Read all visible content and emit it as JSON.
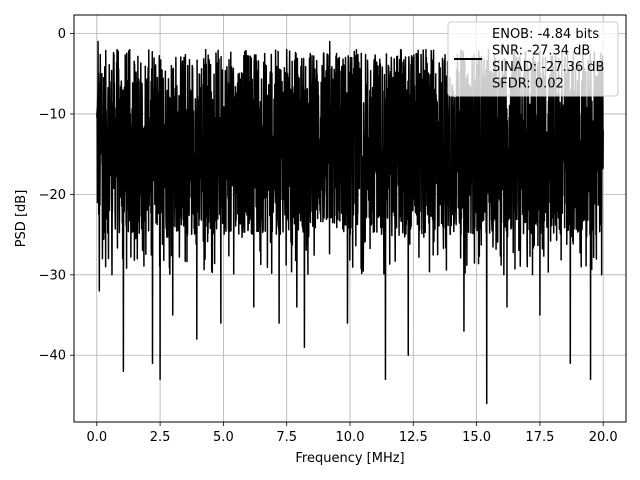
{
  "chart_data": {
    "type": "line",
    "title": "",
    "xlabel": "Frequency [MHz]",
    "ylabel": "PSD [dB]",
    "xlim": [
      -0.9,
      20.9
    ],
    "ylim": [
      -48.3,
      2.3
    ],
    "x_ticks": [
      0.0,
      2.5,
      5.0,
      7.5,
      10.0,
      12.5,
      15.0,
      17.5,
      20.0
    ],
    "x_tick_labels": [
      "0.0",
      "2.5",
      "5.0",
      "7.5",
      "10.0",
      "12.5",
      "15.0",
      "17.5",
      "20.0"
    ],
    "y_ticks": [
      0,
      -10,
      -20,
      -30,
      -40
    ],
    "y_tick_labels": [
      "0",
      "−10",
      "−20",
      "−30",
      "−40"
    ],
    "grid": true,
    "legend_position": "top-right",
    "legend_lines": [
      "ENOB: -4.84 bits",
      "SNR: -27.34 dB",
      "SINAD: -27.36 dB",
      "SFDR: 0.02"
    ],
    "series": [
      {
        "color": "#000000",
        "x_start": 0.0,
        "x_end": 20.0,
        "dense_band": [
          -25,
          -2
        ],
        "x": [
          0.05,
          0.1,
          0.2,
          0.35,
          0.6,
          0.8,
          1.05,
          1.3,
          1.6,
          2.2,
          2.5,
          3.0,
          3.95,
          4.3,
          4.9,
          5.9,
          6.2,
          7.2,
          7.5,
          7.9,
          8.2,
          9.2,
          9.9,
          11.0,
          11.4,
          12.0,
          12.3,
          13.0,
          14.5,
          15.0,
          15.4,
          16.2,
          16.5,
          17.0,
          17.5,
          18.7,
          19.2,
          19.5,
          20.0
        ],
        "y": [
          -1,
          -32,
          -5,
          -29,
          -30,
          -2,
          -42,
          -2,
          -28,
          -41,
          -43,
          -35,
          -38,
          -2,
          -36,
          -3,
          -34,
          -36,
          -2,
          -34,
          -39,
          -1,
          -36,
          -3,
          -43,
          -2,
          -40,
          -2,
          -37,
          -3,
          -46,
          -34,
          -2,
          -29,
          -35,
          -41,
          -2,
          -43,
          -12
        ]
      }
    ]
  }
}
